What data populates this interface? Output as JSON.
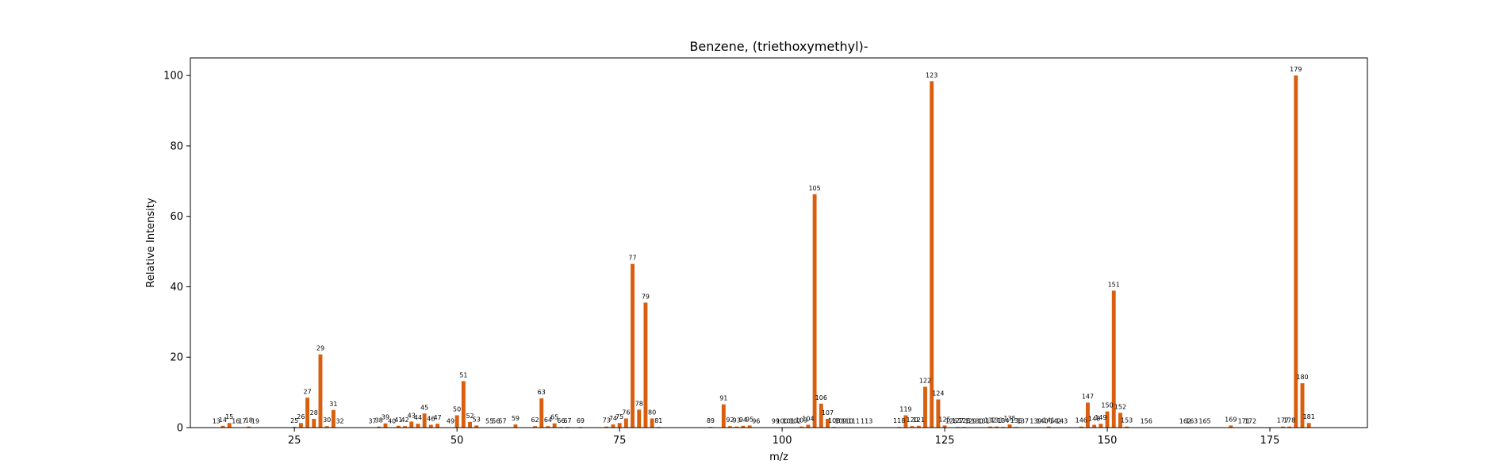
{
  "chart_data": {
    "type": "bar",
    "title": "Benzene, (triethoxymethyl)-",
    "xlabel": "m/z",
    "ylabel": "Relative Intensity",
    "xlim": [
      9,
      190
    ],
    "ylim": [
      0,
      105
    ],
    "xticks": [
      25,
      50,
      75,
      100,
      125,
      150,
      175
    ],
    "yticks": [
      0,
      20,
      40,
      60,
      80,
      100
    ],
    "grid": false,
    "bar_color": "#d95f0e",
    "peaks": [
      {
        "mz": 13,
        "intensity": 0.1
      },
      {
        "mz": 14,
        "intensity": 0.5
      },
      {
        "mz": 15,
        "intensity": 1.3
      },
      {
        "mz": 16,
        "intensity": 0.1
      },
      {
        "mz": 17,
        "intensity": 0.1
      },
      {
        "mz": 18,
        "intensity": 0.3
      },
      {
        "mz": 19,
        "intensity": 0.1
      },
      {
        "mz": 25,
        "intensity": 0.2
      },
      {
        "mz": 26,
        "intensity": 1.3
      },
      {
        "mz": 27,
        "intensity": 8.5
      },
      {
        "mz": 28,
        "intensity": 2.5
      },
      {
        "mz": 29,
        "intensity": 20.8
      },
      {
        "mz": 30,
        "intensity": 0.4
      },
      {
        "mz": 31,
        "intensity": 5.0
      },
      {
        "mz": 32,
        "intensity": 0.1
      },
      {
        "mz": 37,
        "intensity": 0.1
      },
      {
        "mz": 38,
        "intensity": 0.3
      },
      {
        "mz": 39,
        "intensity": 1.2
      },
      {
        "mz": 40,
        "intensity": 0.1
      },
      {
        "mz": 41,
        "intensity": 0.5
      },
      {
        "mz": 42,
        "intensity": 0.4
      },
      {
        "mz": 43,
        "intensity": 1.7
      },
      {
        "mz": 44,
        "intensity": 1.1
      },
      {
        "mz": 45,
        "intensity": 4.0
      },
      {
        "mz": 46,
        "intensity": 0.8
      },
      {
        "mz": 47,
        "intensity": 1.1
      },
      {
        "mz": 49,
        "intensity": 0.1
      },
      {
        "mz": 50,
        "intensity": 3.5
      },
      {
        "mz": 51,
        "intensity": 13.2
      },
      {
        "mz": 52,
        "intensity": 1.6
      },
      {
        "mz": 53,
        "intensity": 0.6
      },
      {
        "mz": 55,
        "intensity": 0.1
      },
      {
        "mz": 56,
        "intensity": 0.1
      },
      {
        "mz": 57,
        "intensity": 0.1
      },
      {
        "mz": 59,
        "intensity": 0.9
      },
      {
        "mz": 62,
        "intensity": 0.4
      },
      {
        "mz": 63,
        "intensity": 8.3
      },
      {
        "mz": 64,
        "intensity": 0.4
      },
      {
        "mz": 65,
        "intensity": 1.2
      },
      {
        "mz": 66,
        "intensity": 0.2
      },
      {
        "mz": 67,
        "intensity": 0.2
      },
      {
        "mz": 69,
        "intensity": 0.2
      },
      {
        "mz": 73,
        "intensity": 0.3
      },
      {
        "mz": 74,
        "intensity": 0.9
      },
      {
        "mz": 75,
        "intensity": 1.3
      },
      {
        "mz": 76,
        "intensity": 2.6
      },
      {
        "mz": 77,
        "intensity": 46.5
      },
      {
        "mz": 78,
        "intensity": 5.1
      },
      {
        "mz": 79,
        "intensity": 35.5
      },
      {
        "mz": 80,
        "intensity": 2.6
      },
      {
        "mz": 81,
        "intensity": 0.2
      },
      {
        "mz": 89,
        "intensity": 0.2
      },
      {
        "mz": 91,
        "intensity": 6.6
      },
      {
        "mz": 92,
        "intensity": 0.4
      },
      {
        "mz": 93,
        "intensity": 0.3
      },
      {
        "mz": 94,
        "intensity": 0.5
      },
      {
        "mz": 95,
        "intensity": 0.6
      },
      {
        "mz": 96,
        "intensity": 0.1
      },
      {
        "mz": 99,
        "intensity": 0.1
      },
      {
        "mz": 100,
        "intensity": 0.1
      },
      {
        "mz": 101,
        "intensity": 0.1
      },
      {
        "mz": 102,
        "intensity": 0.1
      },
      {
        "mz": 103,
        "intensity": 0.3
      },
      {
        "mz": 104,
        "intensity": 0.8
      },
      {
        "mz": 105,
        "intensity": 66.3
      },
      {
        "mz": 106,
        "intensity": 6.8
      },
      {
        "mz": 107,
        "intensity": 2.5
      },
      {
        "mz": 108,
        "intensity": 0.2
      },
      {
        "mz": 109,
        "intensity": 0.1
      },
      {
        "mz": 110,
        "intensity": 0.1
      },
      {
        "mz": 111,
        "intensity": 0.1
      },
      {
        "mz": 113,
        "intensity": 0.1
      },
      {
        "mz": 118,
        "intensity": 0.2
      },
      {
        "mz": 119,
        "intensity": 3.5
      },
      {
        "mz": 120,
        "intensity": 0.4
      },
      {
        "mz": 121,
        "intensity": 0.5
      },
      {
        "mz": 122,
        "intensity": 11.6
      },
      {
        "mz": 123,
        "intensity": 98.4
      },
      {
        "mz": 124,
        "intensity": 8.0
      },
      {
        "mz": 125,
        "intensity": 0.6
      },
      {
        "mz": 126,
        "intensity": 0.1
      },
      {
        "mz": 127,
        "intensity": 0.2
      },
      {
        "mz": 128,
        "intensity": 0.2
      },
      {
        "mz": 129,
        "intensity": 0.1
      },
      {
        "mz": 130,
        "intensity": 0.1
      },
      {
        "mz": 131,
        "intensity": 0.1
      },
      {
        "mz": 132,
        "intensity": 0.3
      },
      {
        "mz": 133,
        "intensity": 0.3
      },
      {
        "mz": 134,
        "intensity": 0.2
      },
      {
        "mz": 135,
        "intensity": 0.9
      },
      {
        "mz": 136,
        "intensity": 0.2
      },
      {
        "mz": 137,
        "intensity": 0.1
      },
      {
        "mz": 139,
        "intensity": 0.1
      },
      {
        "mz": 140,
        "intensity": 0.1
      },
      {
        "mz": 141,
        "intensity": 0.3
      },
      {
        "mz": 142,
        "intensity": 0.1
      },
      {
        "mz": 143,
        "intensity": 0.1
      },
      {
        "mz": 146,
        "intensity": 0.3
      },
      {
        "mz": 147,
        "intensity": 7.1
      },
      {
        "mz": 148,
        "intensity": 0.8
      },
      {
        "mz": 149,
        "intensity": 1.1
      },
      {
        "mz": 150,
        "intensity": 4.6
      },
      {
        "mz": 151,
        "intensity": 38.9
      },
      {
        "mz": 152,
        "intensity": 4.2
      },
      {
        "mz": 153,
        "intensity": 0.3
      },
      {
        "mz": 156,
        "intensity": 0.1
      },
      {
        "mz": 162,
        "intensity": 0.1
      },
      {
        "mz": 163,
        "intensity": 0.1
      },
      {
        "mz": 165,
        "intensity": 0.1
      },
      {
        "mz": 169,
        "intensity": 0.6
      },
      {
        "mz": 171,
        "intensity": 0.1
      },
      {
        "mz": 172,
        "intensity": 0.1
      },
      {
        "mz": 177,
        "intensity": 0.3
      },
      {
        "mz": 178,
        "intensity": 0.3
      },
      {
        "mz": 179,
        "intensity": 100.0
      },
      {
        "mz": 180,
        "intensity": 12.6
      },
      {
        "mz": 181,
        "intensity": 1.3
      }
    ]
  }
}
